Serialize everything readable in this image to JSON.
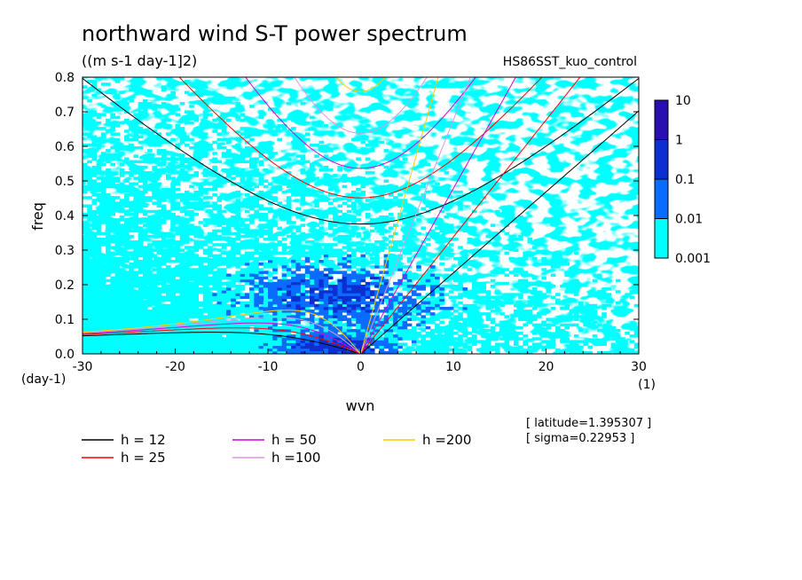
{
  "figure": {
    "title": "northward wind S-T power spectrum",
    "units": "((m s-1 day-1]2)",
    "run_label": "HS86SST_kuo_control",
    "info": [
      "[ latitude=1.395307 ]",
      "[ sigma=0.22953 ]"
    ]
  },
  "chart_data": {
    "type": "heatmap",
    "title": "northward wind S-T power spectrum",
    "xlabel": "wvn",
    "xunit": "(1)",
    "ylabel": "freq",
    "yunit": "(day-1)",
    "xlim": [
      -30,
      30
    ],
    "ylim": [
      0,
      0.8
    ],
    "xticks": [
      -30,
      -20,
      -10,
      0,
      10,
      20,
      30
    ],
    "xtick_labels": [
      "-30",
      "-20",
      "-10",
      "0",
      "10",
      "20",
      "30"
    ],
    "yticks": [
      0,
      0.1,
      0.2,
      0.3,
      0.4,
      0.5,
      0.6,
      0.7,
      0.8
    ],
    "ytick_labels": [
      "0.0",
      "0.1",
      "0.2",
      "0.3",
      "0.4",
      "0.5",
      "0.6",
      "0.7",
      "0.8"
    ],
    "colorbar": {
      "levels": [
        0.001,
        0.01,
        0.1,
        1,
        10
      ],
      "labels": [
        "0.001",
        "0.01",
        "0.1",
        "1",
        "10"
      ],
      "colors": [
        "#00ffff",
        "#0a6cff",
        "#0b2fd0",
        "#2a0fb0"
      ],
      "scale": "log"
    },
    "dispersion_curves": [
      {
        "name": "h = 12",
        "color": "#000000"
      },
      {
        "name": "h = 25",
        "color": "#ff0000"
      },
      {
        "name": "h = 50",
        "color": "#d800d8"
      },
      {
        "name": "h =100",
        "color": "#dd99dd"
      },
      {
        "name": "h =200",
        "color": "#ffcc00"
      }
    ]
  }
}
